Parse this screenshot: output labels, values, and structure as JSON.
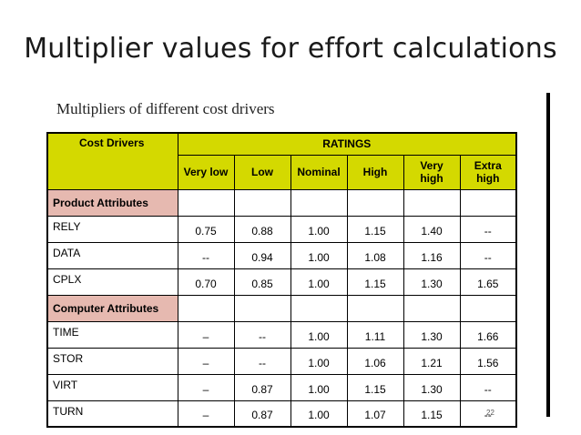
{
  "slide_title": "Multiplier values for effort calculations",
  "subtitle": "Multipliers of different cost drivers",
  "page_number": "22",
  "table": {
    "header_driver": "Cost Drivers",
    "header_ratings": "RATINGS",
    "columns": [
      [
        "Very low"
      ],
      [
        "Low"
      ],
      [
        "Nominal"
      ],
      [
        "High"
      ],
      [
        "Very",
        "high"
      ],
      [
        "Extra",
        "high"
      ]
    ],
    "groups": [
      {
        "label": "Product Attributes",
        "rows": [
          {
            "driver": "RELY",
            "values": [
              "0.75",
              "0.88",
              "1.00",
              "1.15",
              "1.40",
              "--"
            ]
          },
          {
            "driver": "DATA",
            "values": [
              "--",
              "0.94",
              "1.00",
              "1.08",
              "1.16",
              "--"
            ]
          },
          {
            "driver": "CPLX",
            "values": [
              "0.70",
              "0.85",
              "1.00",
              "1.15",
              "1.30",
              "1.65"
            ]
          }
        ]
      },
      {
        "label": "Computer Attributes",
        "rows": [
          {
            "driver": "TIME",
            "values": [
              "–",
              "--",
              "1.00",
              "1.11",
              "1.30",
              "1.66"
            ]
          },
          {
            "driver": "STOR",
            "values": [
              "–",
              "--",
              "1.00",
              "1.06",
              "1.21",
              "1.56"
            ]
          },
          {
            "driver": "VIRT",
            "values": [
              "–",
              "0.87",
              "1.00",
              "1.15",
              "1.30",
              "--"
            ]
          },
          {
            "driver": "TURN",
            "values": [
              "–",
              "0.87",
              "1.00",
              "1.07",
              "1.15",
              "--"
            ]
          }
        ]
      }
    ],
    "colors": {
      "header_bg": "#d4d900",
      "group_bg": "#e6b9b0"
    }
  }
}
